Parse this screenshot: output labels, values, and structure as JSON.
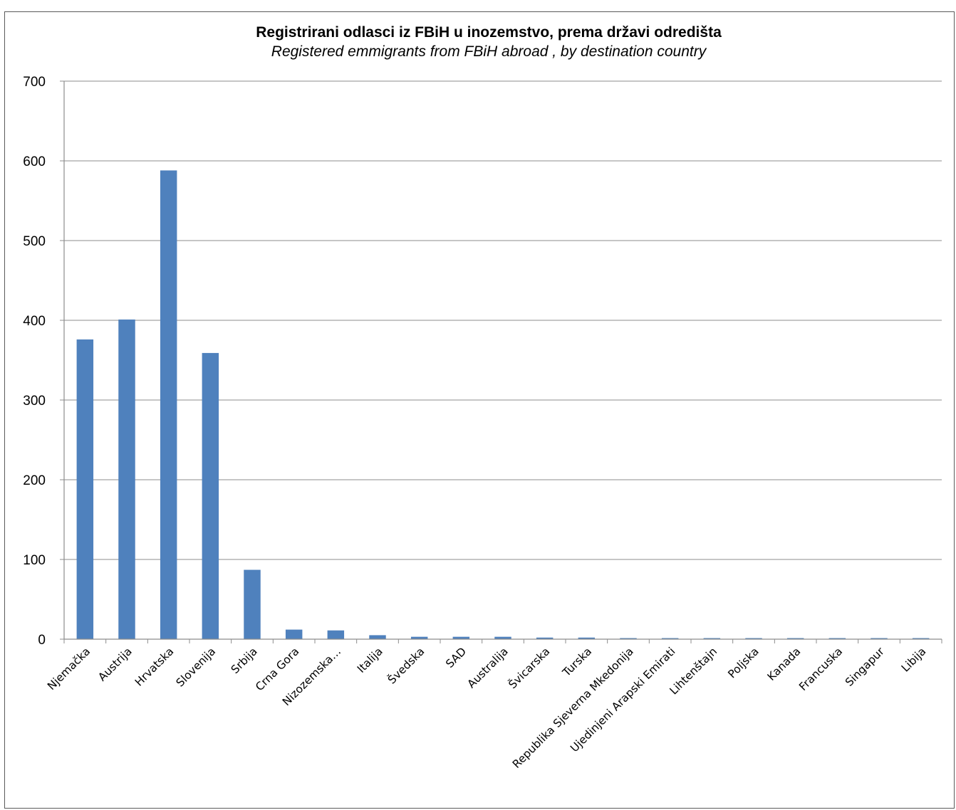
{
  "chart_data": {
    "type": "bar",
    "title": "Registrirani odlasci iz FBiH u inozemstvo, prema državi odredišta",
    "subtitle": "Registered emmigrants from FBiH abroad , by destination country",
    "xlabel": "",
    "ylabel": "",
    "ylim": [
      0,
      700
    ],
    "yticks": [
      0,
      100,
      200,
      300,
      400,
      500,
      600,
      700
    ],
    "grid": true,
    "legend": "none",
    "bar_color": "#4f81bd",
    "categories": [
      "Njemačka",
      "Austrija",
      "Hrvatska",
      "Slovenija",
      "Srbija",
      "Crna Gora",
      "Nizozemska…",
      "Italija",
      "Švedska",
      "SAD",
      "Australija",
      "Švicarska",
      "Turska",
      "Republika Sjeverna Mkedonija",
      "Ujedinjeni Arapski Emirati",
      "Lihtenštajn",
      "Poljska",
      "Kanada",
      "Francuska",
      "Singapur",
      "Libija"
    ],
    "values": [
      376,
      401,
      588,
      359,
      87,
      12,
      11,
      5,
      3,
      3,
      3,
      2,
      2,
      1,
      1,
      1,
      1,
      1,
      1,
      1,
      1
    ]
  }
}
